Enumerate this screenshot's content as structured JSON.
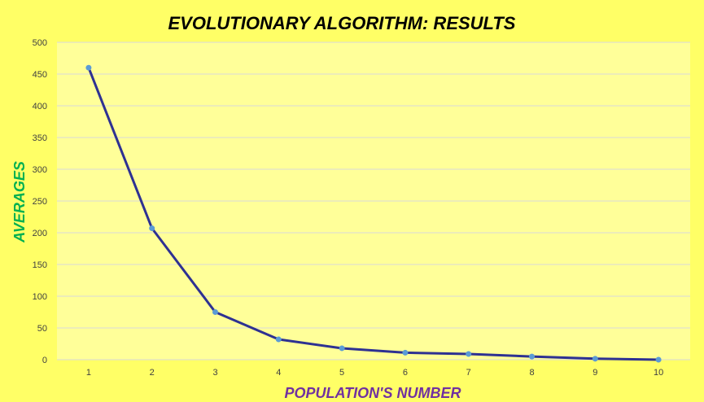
{
  "chart_data": {
    "type": "line",
    "title": "EVOLUTIONARY ALGORITHM: RESULTS",
    "xlabel": "POPULATION'S NUMBER",
    "ylabel": "AVERAGES",
    "x": [
      1,
      2,
      3,
      4,
      5,
      6,
      7,
      8,
      9,
      10
    ],
    "x_tick_labels": [
      "1",
      "2",
      "3",
      "4",
      "5",
      "6",
      "7",
      "8",
      "9",
      "10"
    ],
    "y_ticks": [
      0,
      50,
      100,
      150,
      200,
      250,
      300,
      350,
      400,
      450,
      500
    ],
    "y_tick_labels": [
      "0",
      "50",
      "100",
      "150",
      "200",
      "250",
      "300",
      "350",
      "400",
      "450",
      "500"
    ],
    "ylim": [
      0,
      500
    ],
    "series": [
      {
        "values": [
          460,
          207,
          75,
          32,
          18,
          11,
          9,
          5,
          1.5,
          0
        ]
      }
    ],
    "grid": true,
    "legend": "none",
    "colors": {
      "background": "#ffff66",
      "plot_area": "#ffff99",
      "gridline": "#d9d9d9",
      "line": "#2e3192",
      "marker": "#5b9bd5",
      "title": "#000000",
      "xlabel": "#7030a0",
      "ylabel": "#00b050",
      "tick_text": "#404040"
    }
  }
}
